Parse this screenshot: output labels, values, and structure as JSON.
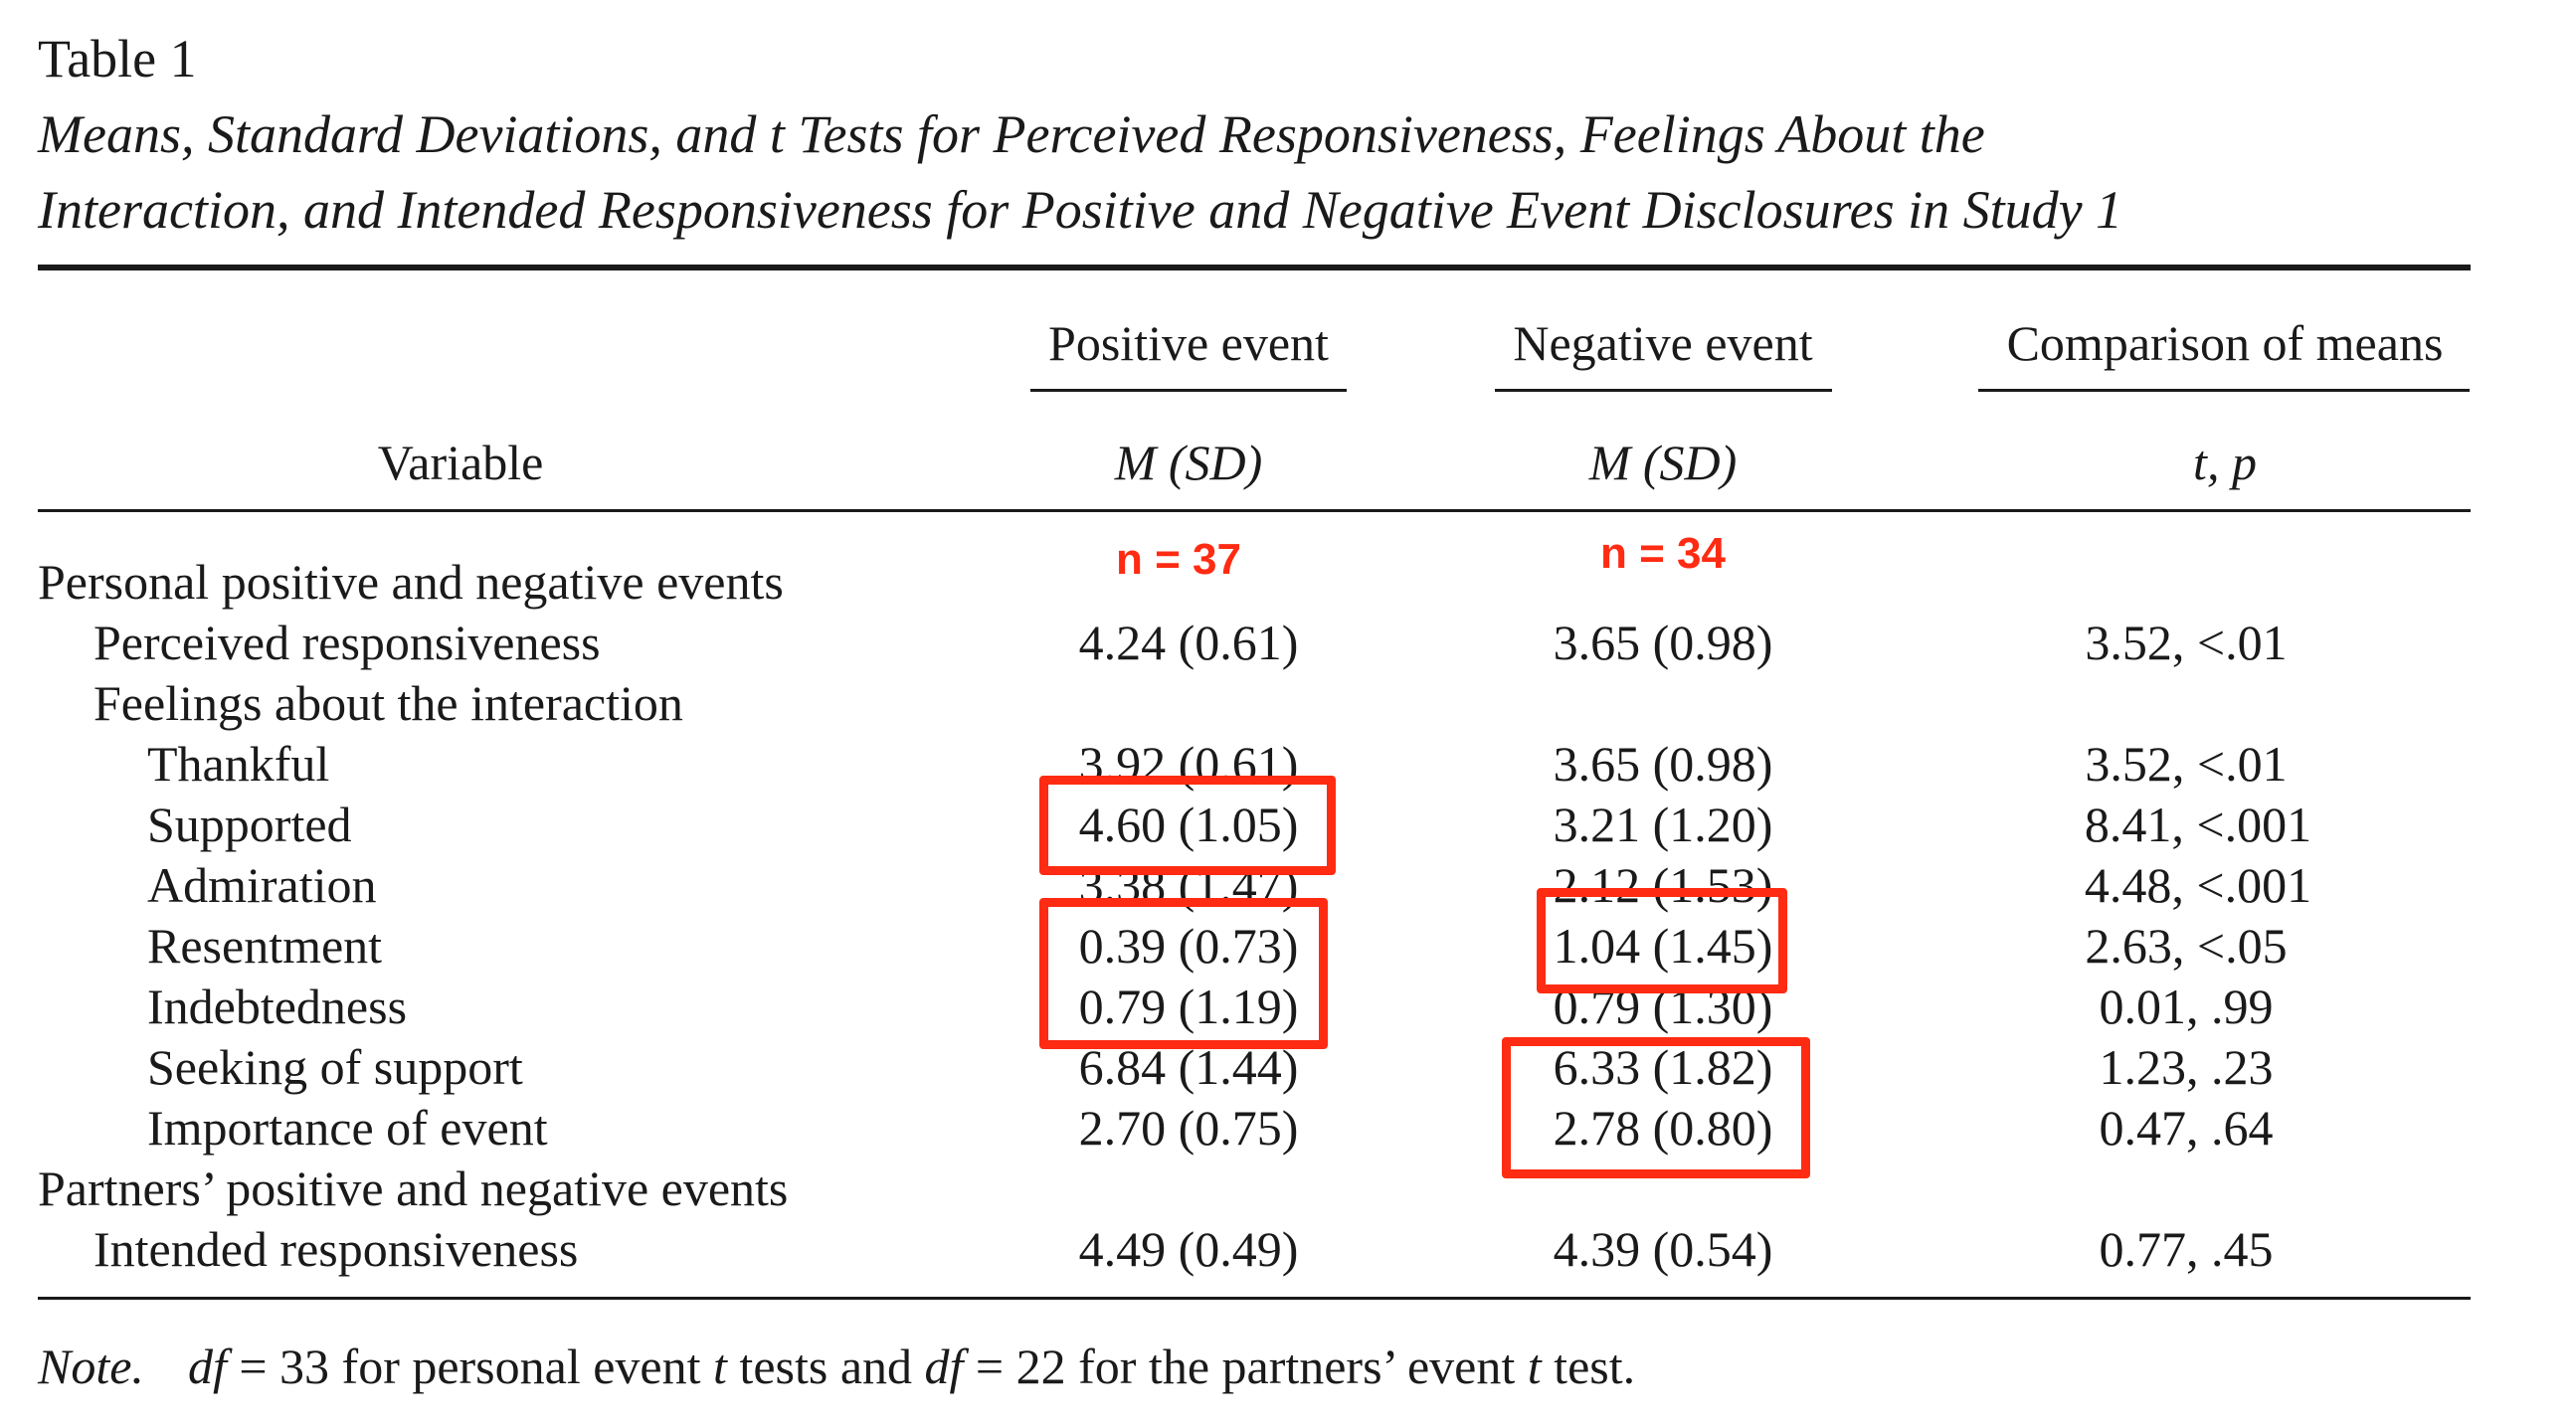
{
  "table_label": "Table 1",
  "caption_line1": "Means, Standard Deviations, and t Tests for Perceived Responsiveness, Feelings About the",
  "caption_line2": "Interaction, and Intended Responsiveness for Positive and Negative Event Disclosures in Study 1",
  "headers": {
    "positive_event": "Positive event",
    "negative_event": "Negative event",
    "comparison": "Comparison of means",
    "variable": "Variable",
    "pos_stat": "M (SD)",
    "neg_stat": "M (SD)",
    "comp_stat": "t, p"
  },
  "annotations": {
    "n_positive": "n = 37",
    "n_negative": "n = 34",
    "highlight_color": "#ff2b12"
  },
  "rows": [
    {
      "label": "Personal positive and negative events",
      "indent": 0,
      "pos": "",
      "neg": "",
      "comp": ""
    },
    {
      "label": "Perceived responsiveness",
      "indent": 1,
      "pos": "4.24 (0.61)",
      "neg": "3.65 (0.98)",
      "comp": "3.52, <.01"
    },
    {
      "label": "Feelings about the interaction",
      "indent": 1,
      "pos": "",
      "neg": "",
      "comp": ""
    },
    {
      "label": "Thankful",
      "indent": 2,
      "pos": "3.92 (0.61)",
      "neg": "3.65 (0.98)",
      "comp": "3.52, <.01"
    },
    {
      "label": "Supported",
      "indent": 2,
      "pos": "4.60 (1.05)",
      "neg": "3.21 (1.20)",
      "comp": "8.41, <.001"
    },
    {
      "label": "Admiration",
      "indent": 2,
      "pos": "3.38 (1.47)",
      "neg": "2.12 (1.53)",
      "comp": "4.48, <.001"
    },
    {
      "label": "Resentment",
      "indent": 2,
      "pos": "0.39 (0.73)",
      "neg": "1.04 (1.45)",
      "comp": "2.63, <.05"
    },
    {
      "label": "Indebtedness",
      "indent": 2,
      "pos": "0.79 (1.19)",
      "neg": "0.79 (1.30)",
      "comp": "0.01, .99"
    },
    {
      "label": "Seeking of support",
      "indent": 2,
      "pos": "6.84 (1.44)",
      "neg": "6.33 (1.82)",
      "comp": "1.23, .23"
    },
    {
      "label": "Importance of event",
      "indent": 2,
      "pos": "2.70 (0.75)",
      "neg": "2.78 (0.80)",
      "comp": "0.47, .64"
    },
    {
      "label": "Partners’ positive and negative events",
      "indent": 0,
      "pos": "",
      "neg": "",
      "comp": ""
    },
    {
      "label": "Intended responsiveness",
      "indent": 1,
      "pos": "4.49 (0.49)",
      "neg": "4.39 (0.54)",
      "comp": "0.77, .45"
    }
  ],
  "note": {
    "label": "Note.",
    "df1": "df",
    "part1": " = 33 for personal event ",
    "t1": "t",
    "part2": " tests and ",
    "df2": "df",
    "part3": " = 22 for the partners’ event ",
    "t2": "t",
    "part4": " test."
  }
}
